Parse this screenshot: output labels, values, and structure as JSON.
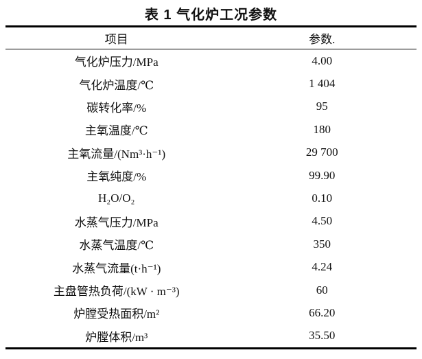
{
  "page": {
    "title": "表 1  气化炉工况参数"
  },
  "table": {
    "columns": {
      "item": "项目",
      "value": "参数."
    },
    "rows": [
      {
        "item": "气化炉压力/MPa",
        "value": "4.00"
      },
      {
        "item": "气化炉温度/℃",
        "value": "1 404"
      },
      {
        "item": "碳转化率/%",
        "value": "95"
      },
      {
        "item": "主氧温度/℃",
        "value": "180"
      },
      {
        "item": "主氧流量/(Nm³·h⁻¹)",
        "value": "29 700"
      },
      {
        "item": "主氧纯度/%",
        "value": "99.90"
      },
      {
        "item": "H₂O/O₂",
        "value": "0.10"
      },
      {
        "item": "水蒸气压力/MPa",
        "value": "4.50"
      },
      {
        "item": "水蒸气温度/℃",
        "value": "350"
      },
      {
        "item": "水蒸气流量(t·h⁻¹)",
        "value": "4.24"
      },
      {
        "item": "主盘管热负荷/(kW · m⁻³)",
        "value": "60"
      },
      {
        "item": "炉膛受热面积/m²",
        "value": "66.20"
      },
      {
        "item": "炉膛体积/m³",
        "value": "35.50"
      }
    ]
  }
}
